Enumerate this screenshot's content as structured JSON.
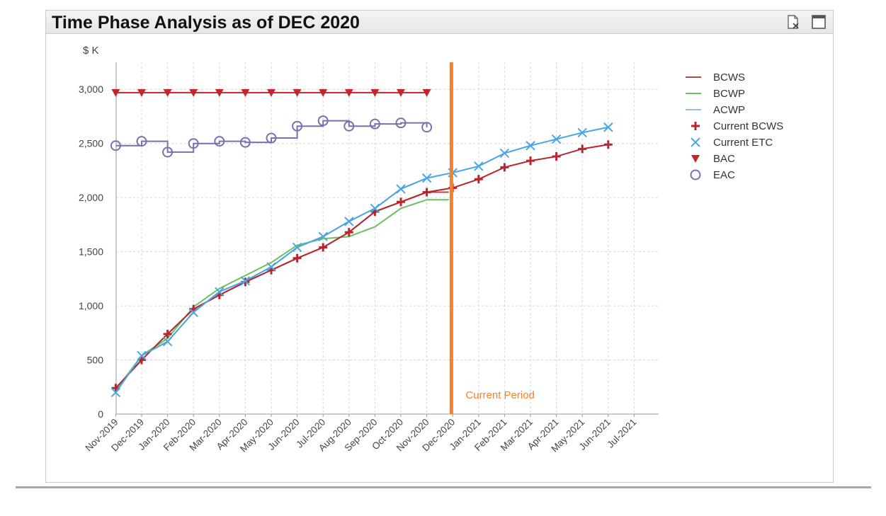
{
  "panel": {
    "title": "Time Phase Analysis as of DEC 2020",
    "icons": [
      "export-icon",
      "maximize-icon"
    ]
  },
  "chart_data": {
    "type": "line",
    "ylabel": "$ K",
    "ylim": [
      0,
      3250
    ],
    "yticks": [
      0,
      500,
      1000,
      1500,
      2000,
      2500,
      3000
    ],
    "ytick_labels": [
      "0",
      "500",
      "1,000",
      "1,500",
      "2,000",
      "2,500",
      "3,000"
    ],
    "categories": [
      "Nov-2019",
      "Dec-2019",
      "Jan-2020",
      "Feb-2020",
      "Mar-2020",
      "Apr-2020",
      "May-2020",
      "Jun-2020",
      "Jul-2020",
      "Aug-2020",
      "Sep-2020",
      "Oct-2020",
      "Nov-2020",
      "Dec-2020",
      "Jan-2021",
      "Feb-2021",
      "Mar-2021",
      "Apr-2021",
      "May-2021",
      "Jun-2021",
      "Jul-2021"
    ],
    "grid": true,
    "legend": "right",
    "annotation": {
      "text": "Current Period",
      "at": 12.95,
      "color": "#f5822a"
    },
    "series": [
      {
        "name": "BCWS",
        "marker": "none",
        "color": "#b5454a",
        "x": [
          0,
          1,
          2,
          3,
          4,
          5,
          6,
          7,
          8,
          9,
          10,
          11,
          12,
          12.85
        ],
        "values": [
          240,
          500,
          740,
          970,
          1100,
          1220,
          1330,
          1440,
          1540,
          1680,
          1870,
          1960,
          2050,
          2050
        ]
      },
      {
        "name": "BCWP",
        "marker": "none",
        "color": "#6cbf5e",
        "x": [
          0,
          1,
          2,
          3,
          4,
          5,
          6,
          7,
          8,
          9,
          10,
          11,
          12,
          12.85
        ],
        "values": [
          220,
          540,
          700,
          990,
          1160,
          1280,
          1400,
          1560,
          1620,
          1640,
          1730,
          1900,
          1980,
          1980
        ]
      },
      {
        "name": "ACWP",
        "marker": "none",
        "color": "#8fc3e8",
        "x": [
          0,
          1,
          2,
          3,
          4,
          5,
          6,
          7,
          8,
          9,
          10,
          11,
          12
        ],
        "values": [
          200,
          540,
          670,
          940,
          1130,
          1230,
          1360,
          1540,
          1640,
          1780,
          1900,
          2080,
          2180
        ]
      },
      {
        "name": "Current BCWS",
        "marker": "plus",
        "color": "#b8262e",
        "x": [
          0,
          1,
          2,
          3,
          4,
          5,
          6,
          7,
          8,
          9,
          10,
          11,
          12,
          13,
          14,
          15,
          16,
          17,
          18,
          19
        ],
        "values": [
          240,
          500,
          740,
          970,
          1100,
          1220,
          1330,
          1440,
          1540,
          1680,
          1870,
          1960,
          2050,
          2090,
          2170,
          2280,
          2340,
          2380,
          2450,
          2490
        ]
      },
      {
        "name": "Current ETC",
        "marker": "x",
        "color": "#4aa6e0",
        "x": [
          0,
          1,
          2,
          3,
          4,
          5,
          6,
          7,
          8,
          9,
          10,
          11,
          12,
          13,
          14,
          15,
          16,
          17,
          18,
          19
        ],
        "values": [
          200,
          540,
          670,
          940,
          1130,
          1230,
          1360,
          1540,
          1640,
          1780,
          1900,
          2080,
          2180,
          2230,
          2290,
          2410,
          2480,
          2540,
          2600,
          2650
        ]
      },
      {
        "name": "BAC",
        "marker": "triangle-down",
        "color": "#c1272d",
        "x": [
          0,
          1,
          2,
          3,
          4,
          5,
          6,
          7,
          8,
          9,
          10,
          11,
          12
        ],
        "values": [
          2970,
          2970,
          2970,
          2970,
          2970,
          2970,
          2970,
          2970,
          2970,
          2970,
          2970,
          2970,
          2970
        ]
      },
      {
        "name": "EAC",
        "marker": "circle",
        "color": "#7b6fae",
        "x": [
          0,
          1,
          2,
          3,
          4,
          5,
          6,
          7,
          8,
          9,
          10,
          11,
          12
        ],
        "values": [
          2480,
          2520,
          2420,
          2500,
          2520,
          2510,
          2550,
          2660,
          2710,
          2660,
          2680,
          2690,
          2650
        ]
      }
    ]
  }
}
